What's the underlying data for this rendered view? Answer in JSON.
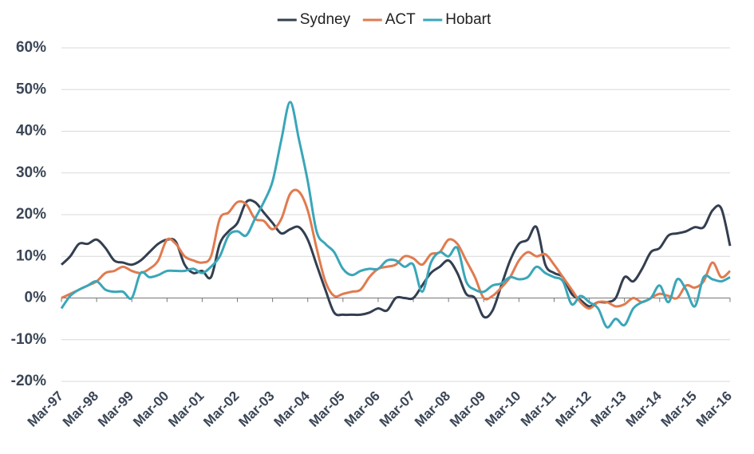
{
  "chart_data": {
    "type": "line",
    "categories": [
      "Mar-97",
      null,
      null,
      null,
      "Mar-98",
      null,
      null,
      null,
      "Mar-99",
      null,
      null,
      null,
      "Mar-00",
      null,
      null,
      null,
      "Mar-01",
      null,
      null,
      null,
      "Mar-02",
      null,
      null,
      null,
      "Mar-03",
      null,
      null,
      null,
      "Mar-04",
      null,
      null,
      null,
      "Mar-05",
      null,
      null,
      null,
      "Mar-06",
      null,
      null,
      null,
      "Mar-07",
      null,
      null,
      null,
      "Mar-08",
      null,
      null,
      null,
      "Mar-09",
      null,
      null,
      null,
      "Mar-10",
      null,
      null,
      null,
      "Mar-11",
      null,
      null,
      null,
      "Mar-12",
      null,
      null,
      null,
      "Mar-13",
      null,
      null,
      null,
      "Mar-14",
      null,
      null,
      null,
      "Mar-15",
      null,
      null,
      null,
      "Mar-16"
    ],
    "series": [
      {
        "name": "Sydney",
        "color": "#333f50",
        "values": [
          8,
          10,
          13,
          13,
          14,
          12,
          9,
          8.5,
          8,
          9,
          11,
          13,
          14,
          13.5,
          8,
          6,
          6.5,
          5,
          13,
          16,
          18,
          23,
          23,
          20.5,
          18,
          15.5,
          16.5,
          17,
          14,
          8,
          2,
          -3.5,
          -4,
          -4,
          -4,
          -3.5,
          -2.5,
          -3,
          0,
          0,
          0,
          3,
          6,
          7.5,
          9,
          6,
          1,
          0,
          -4.5,
          -3,
          3,
          9,
          13,
          14,
          17,
          8,
          6,
          5,
          1,
          -0.5,
          -2,
          -1,
          -1,
          0,
          5,
          4,
          7,
          11,
          12,
          15,
          15.5,
          16,
          17,
          17,
          21,
          21.5,
          12.5
        ]
      },
      {
        "name": "ACT",
        "color": "#e07b4f",
        "values": [
          0,
          1,
          2,
          3,
          4,
          6,
          6.5,
          7.5,
          6.5,
          6,
          7,
          9,
          14,
          13,
          10,
          9,
          8.5,
          10,
          19,
          20.5,
          23,
          22.5,
          19,
          18.5,
          16.5,
          19,
          25,
          25.5,
          21,
          12,
          4,
          0.5,
          1,
          1.5,
          2,
          5,
          7,
          7.5,
          8,
          10,
          9.5,
          8,
          10.5,
          11,
          14,
          13,
          9,
          5,
          0,
          0.5,
          2.5,
          5,
          9,
          11,
          10,
          10.5,
          8,
          5,
          2,
          -1,
          -2.5,
          -1,
          -1,
          -2,
          -1.5,
          0,
          -1,
          0,
          1,
          0.5,
          0,
          3,
          2.5,
          4,
          8.5,
          5,
          6.5
        ]
      },
      {
        "name": "Hobart",
        "color": "#3aa6b9",
        "values": [
          -2.5,
          0.5,
          2,
          3,
          4,
          2,
          1.5,
          1.5,
          0,
          6,
          5,
          5.5,
          6.5,
          6.5,
          6.5,
          7,
          6,
          7.5,
          10,
          15,
          16,
          15,
          19,
          23,
          28,
          38,
          47,
          38,
          28,
          16,
          13,
          11,
          7,
          5.5,
          6.5,
          7,
          7,
          9,
          9,
          7.5,
          8,
          1.5,
          8.5,
          11,
          10,
          12,
          4,
          2,
          1.5,
          3,
          3.5,
          5,
          4.5,
          5,
          7.5,
          6,
          5,
          4,
          -1.5,
          0.5,
          -1,
          -2.5,
          -7,
          -5,
          -6.5,
          -2.5,
          -1,
          0,
          3,
          -1,
          4.5,
          2,
          -2,
          5,
          4.5,
          4,
          5
        ]
      }
    ],
    "ylim": [
      -20,
      60
    ],
    "yticks": [
      {
        "value": -20,
        "label": "-20%"
      },
      {
        "value": -10,
        "label": "-10%"
      },
      {
        "value": 0,
        "label": "0%"
      },
      {
        "value": 10,
        "label": "10%"
      },
      {
        "value": 20,
        "label": "20%"
      },
      {
        "value": 30,
        "label": "30%"
      },
      {
        "value": 40,
        "label": "40%"
      },
      {
        "value": 50,
        "label": "50%"
      },
      {
        "value": 60,
        "label": "60%"
      }
    ],
    "grid": true,
    "legend": "top"
  }
}
